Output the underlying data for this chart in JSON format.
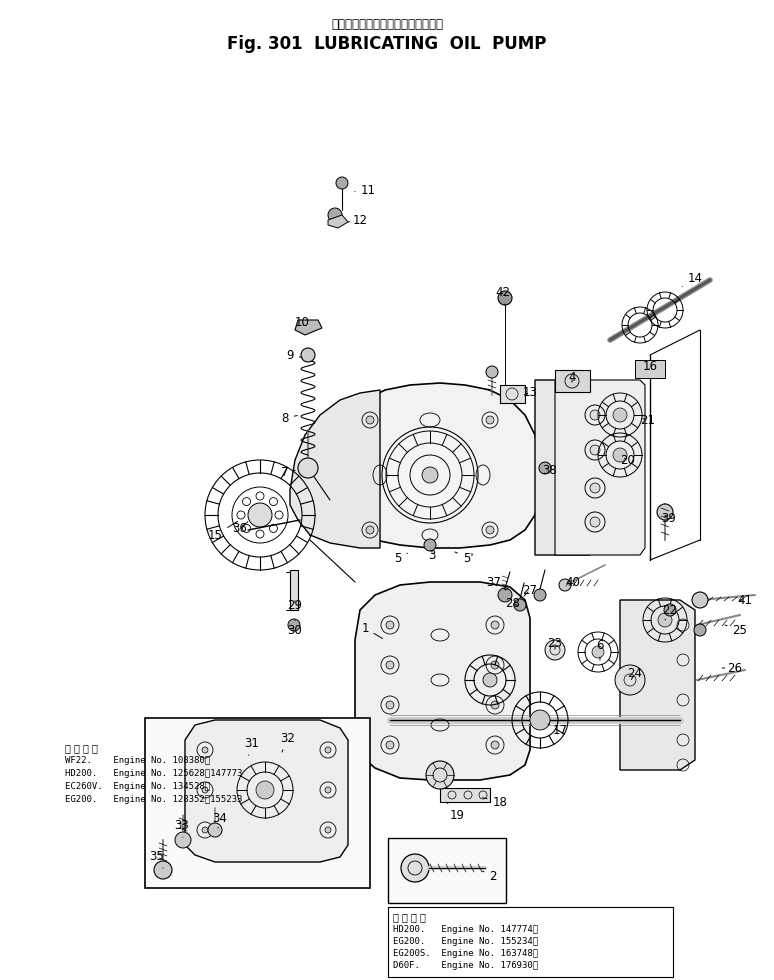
{
  "title_japanese": "ルーブリケーティングオイルポンプ",
  "title_english": "Fig. 301  LUBRICATING  OIL  PUMP",
  "bg_color": "#ffffff",
  "fig_width": 7.74,
  "fig_height": 9.8,
  "dpi": 100,
  "note1_header": "適 用 号 機",
  "note1_lines": [
    "WF22.    Engine No. 108380～",
    "HD200.   Engine No. 125628～147773",
    "EC260V.  Engine No. 134528～",
    "EG200.   Engine No. 128352～155233"
  ],
  "note2_header": "適 用 号 機",
  "note2_lines": [
    "HD200.   Engine No. 147774～",
    "EG200.   Engine No. 155234～",
    "EG200S.  Engine No. 163748～",
    "D60F.    Engine No. 176930～"
  ]
}
